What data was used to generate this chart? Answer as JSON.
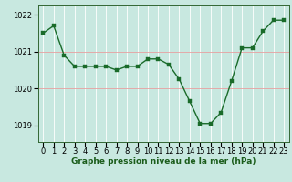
{
  "x": [
    0,
    1,
    2,
    3,
    4,
    5,
    6,
    7,
    8,
    9,
    10,
    11,
    12,
    13,
    14,
    15,
    16,
    17,
    18,
    19,
    20,
    21,
    22,
    23
  ],
  "y": [
    1021.5,
    1021.7,
    1020.9,
    1020.6,
    1020.6,
    1020.6,
    1020.6,
    1020.5,
    1020.6,
    1020.6,
    1020.8,
    1020.8,
    1020.65,
    1020.25,
    1019.65,
    1019.05,
    1019.05,
    1019.35,
    1020.2,
    1021.1,
    1021.1,
    1021.55,
    1021.85,
    1021.85
  ],
  "ylabel_ticks": [
    1019,
    1020,
    1021,
    1022
  ],
  "xlabel_ticks": [
    0,
    1,
    2,
    3,
    4,
    5,
    6,
    7,
    8,
    9,
    10,
    11,
    12,
    13,
    14,
    15,
    16,
    17,
    18,
    19,
    20,
    21,
    22,
    23
  ],
  "line_color": "#1a6b2a",
  "marker_color": "#1a6b2a",
  "bg_color": "#c8e8e0",
  "grid_color_h": "#e8a0a0",
  "grid_color_v": "#ffffff",
  "xlabel": "Graphe pression niveau de la mer (hPa)",
  "ylim": [
    1018.55,
    1022.25
  ],
  "xlim": [
    -0.5,
    23.5
  ],
  "xlabel_fontsize": 6.5,
  "tick_fontsize": 6.0,
  "marker_size": 2.5,
  "linewidth": 1.0
}
